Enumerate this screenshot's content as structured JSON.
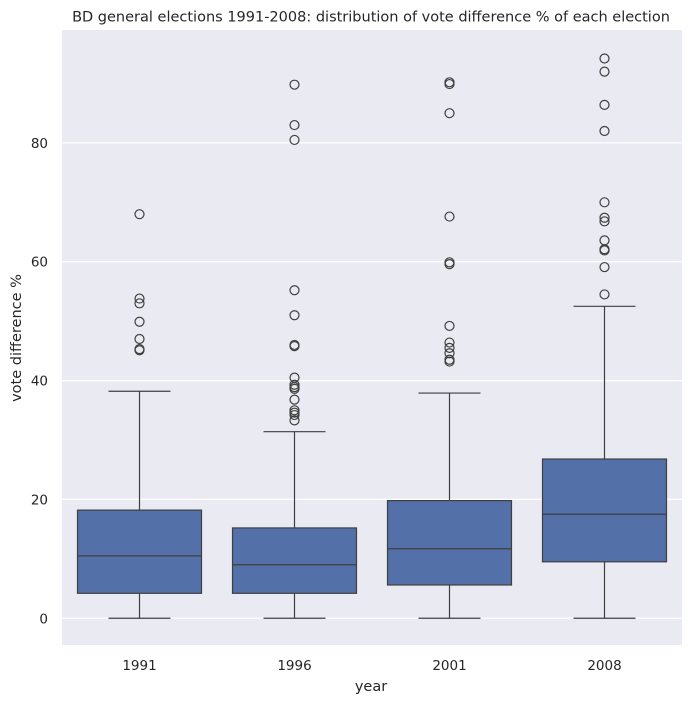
{
  "chart_data": {
    "type": "box",
    "title": "BD general elections 1991-2008: distribution of vote difference % of each election",
    "xlabel": "year",
    "ylabel": "vote difference %",
    "ylim": [
      -4.5,
      99
    ],
    "yticks": [
      0,
      20,
      40,
      60,
      80
    ],
    "grid": true,
    "colors": {
      "box": "#5470a8",
      "line": "#3f3f3f",
      "background": "#eaeaf2",
      "grid": "#ffffff"
    },
    "categories": [
      "1991",
      "1996",
      "2001",
      "2008"
    ],
    "boxes": [
      {
        "category": "1991",
        "whisker_low": 0,
        "q1": 4.2,
        "median": 10.5,
        "q3": 18.2,
        "whisker_high": 38.2,
        "outliers": [
          68,
          53.8,
          53,
          49.9,
          47,
          45.3,
          45.1
        ]
      },
      {
        "category": "1996",
        "whisker_low": 0,
        "q1": 4.2,
        "median": 9,
        "q3": 15.2,
        "whisker_high": 31.4,
        "outliers": [
          89.8,
          83,
          80.5,
          55.2,
          51,
          46,
          45.8,
          40.5,
          39.3,
          38.9,
          38.6,
          36.8,
          35,
          34.6,
          34.2,
          33.3
        ]
      },
      {
        "category": "2001",
        "whisker_low": 0,
        "q1": 5.6,
        "median": 11.7,
        "q3": 19.8,
        "whisker_high": 37.9,
        "outliers": [
          90.2,
          89.9,
          85,
          67.6,
          59.9,
          59.6,
          49.2,
          46.4,
          45.5,
          44.6,
          43.5,
          43.2
        ]
      },
      {
        "category": "2008",
        "whisker_low": 0,
        "q1": 9.5,
        "median": 17.5,
        "q3": 26.8,
        "whisker_high": 52.5,
        "outliers": [
          94.2,
          92,
          86.4,
          82,
          70,
          67.4,
          66.8,
          63.6,
          62.1,
          61.9,
          59.1,
          54.5
        ]
      }
    ]
  }
}
